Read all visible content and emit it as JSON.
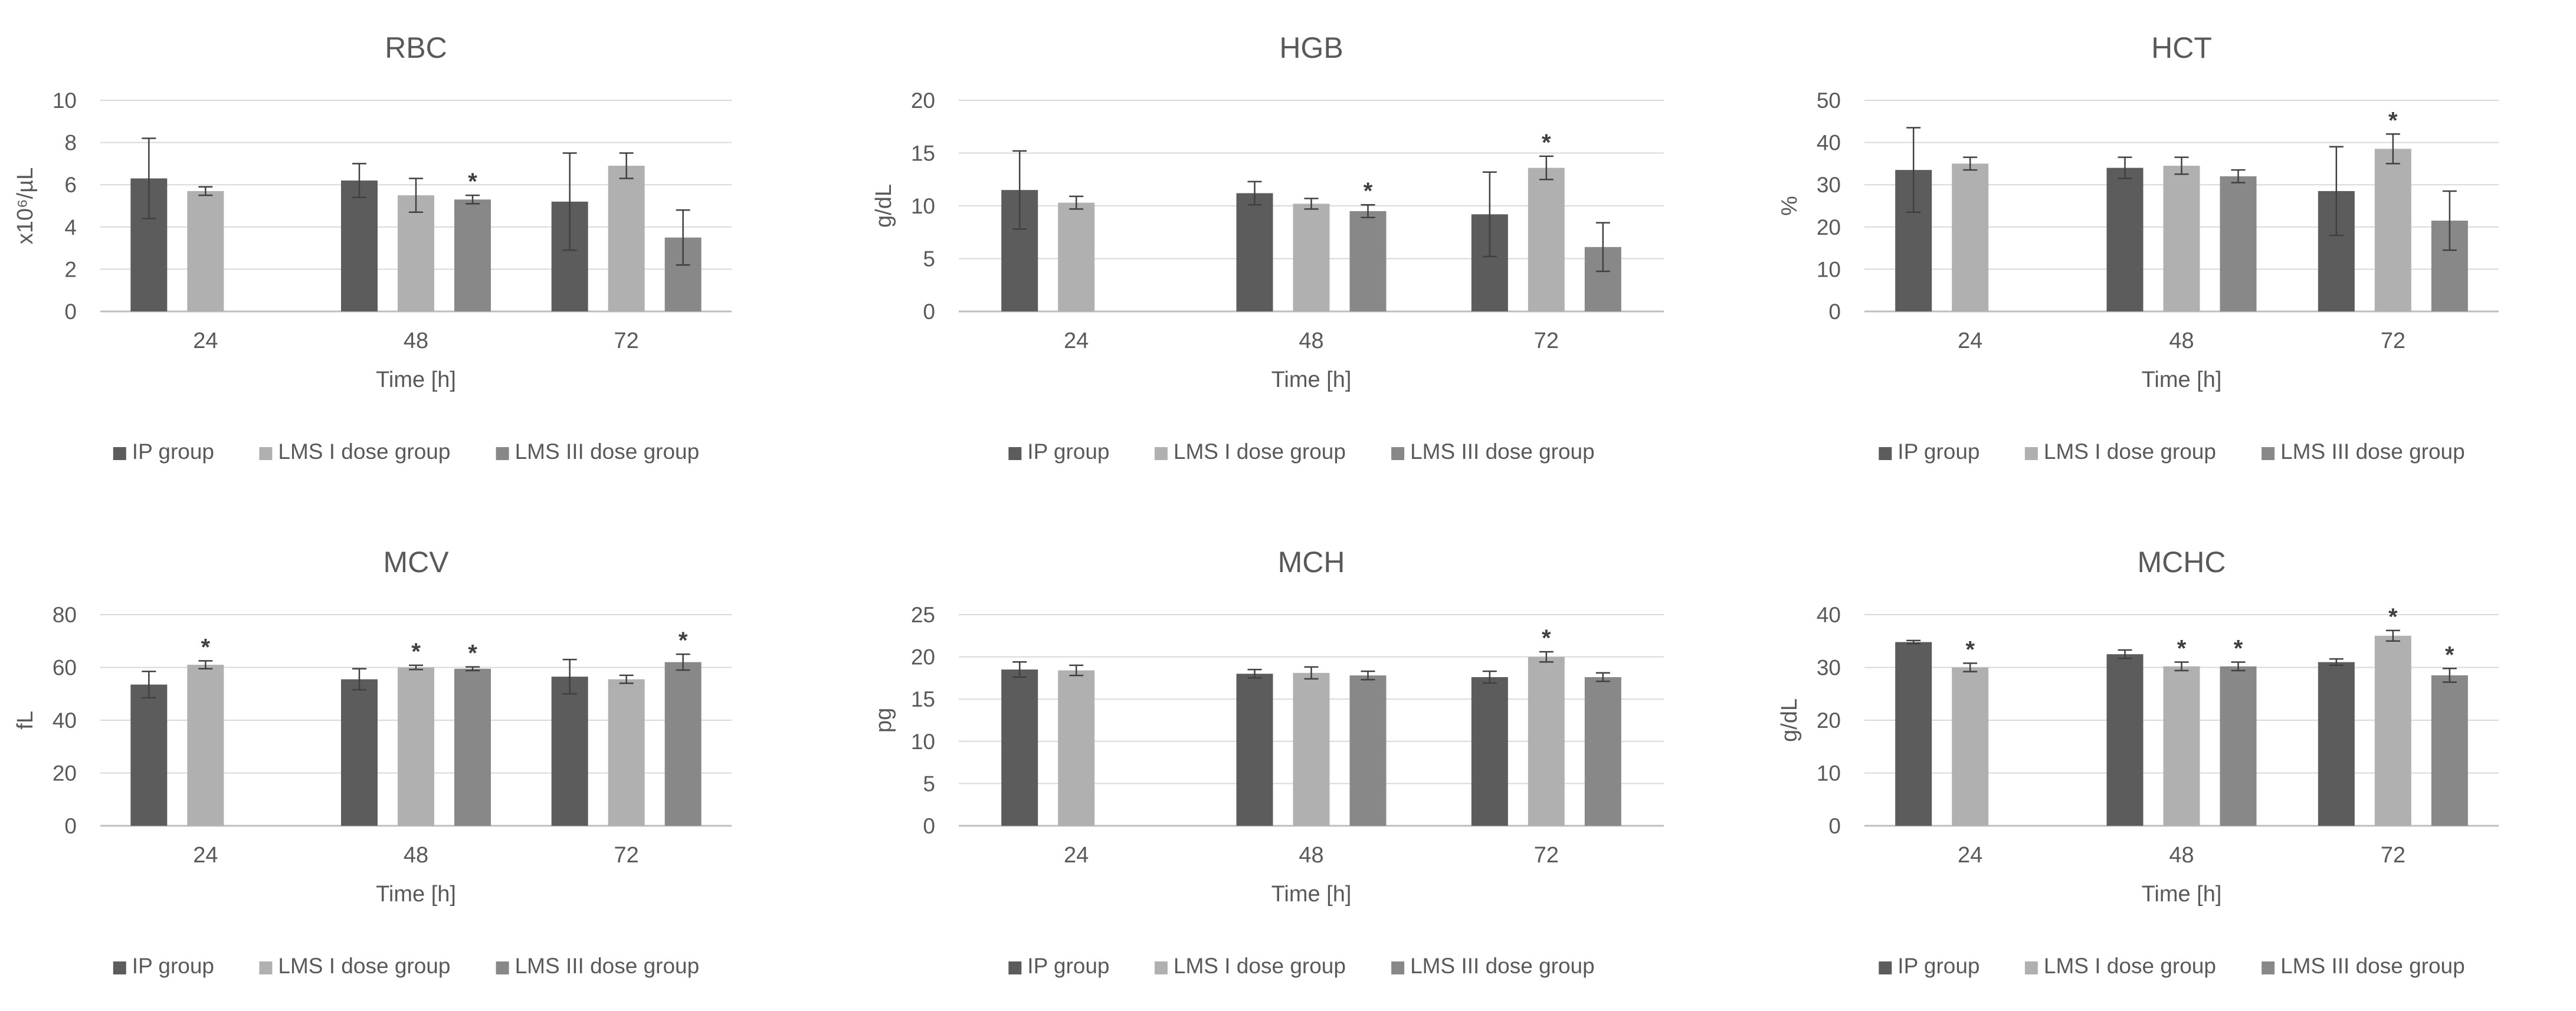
{
  "colors": {
    "ip": "#5c5c5c",
    "lms1": "#b0b0b0",
    "lms3": "#888888",
    "grid": "#d9d9d9",
    "axis": "#bfbfbf",
    "text": "#595959"
  },
  "chart_data": [
    {
      "type": "bar",
      "title": "RBC",
      "xlabel": "Time [h]",
      "ylabel": "x10⁶/µL",
      "ylim": [
        0,
        10
      ],
      "yticks": [
        0,
        2,
        4,
        6,
        8,
        10
      ],
      "grid": true,
      "legend": "bottom",
      "categories": [
        "24",
        "48",
        "72"
      ],
      "series": [
        {
          "name": "IP group",
          "values": [
            6.3,
            6.2,
            5.2
          ],
          "errors": [
            1.9,
            0.8,
            2.3
          ],
          "sig": [
            false,
            false,
            false
          ]
        },
        {
          "name": "LMS I dose group",
          "values": [
            5.7,
            5.5,
            6.9
          ],
          "errors": [
            0.2,
            0.8,
            0.6
          ],
          "sig": [
            false,
            false,
            false
          ]
        },
        {
          "name": "LMS III dose group",
          "values": [
            null,
            5.3,
            3.5
          ],
          "errors": [
            null,
            0.2,
            1.3
          ],
          "sig": [
            false,
            true,
            false
          ]
        }
      ]
    },
    {
      "type": "bar",
      "title": "HGB",
      "xlabel": "Time [h]",
      "ylabel": "g/dL",
      "ylim": [
        0,
        20
      ],
      "yticks": [
        0,
        5,
        10,
        15,
        20
      ],
      "grid": true,
      "legend": "bottom",
      "categories": [
        "24",
        "48",
        "72"
      ],
      "series": [
        {
          "name": "IP group",
          "values": [
            11.5,
            11.2,
            9.2
          ],
          "errors": [
            3.7,
            1.1,
            4.0
          ],
          "sig": [
            false,
            false,
            false
          ]
        },
        {
          "name": "LMS I dose group",
          "values": [
            10.3,
            10.2,
            13.6
          ],
          "errors": [
            0.6,
            0.5,
            1.1
          ],
          "sig": [
            false,
            false,
            true
          ]
        },
        {
          "name": "LMS III dose group",
          "values": [
            null,
            9.5,
            6.1
          ],
          "errors": [
            null,
            0.6,
            2.3
          ],
          "sig": [
            false,
            true,
            false
          ]
        }
      ]
    },
    {
      "type": "bar",
      "title": "HCT",
      "xlabel": "Time [h]",
      "ylabel": "%",
      "ylim": [
        0,
        50
      ],
      "yticks": [
        0,
        10,
        20,
        30,
        40,
        50
      ],
      "grid": true,
      "legend": "bottom",
      "categories": [
        "24",
        "48",
        "72"
      ],
      "series": [
        {
          "name": "IP group",
          "values": [
            33.5,
            34.0,
            28.5
          ],
          "errors": [
            10.0,
            2.5,
            10.5
          ],
          "sig": [
            false,
            false,
            false
          ]
        },
        {
          "name": "LMS I dose group",
          "values": [
            35.0,
            34.5,
            38.5
          ],
          "errors": [
            1.5,
            2.0,
            3.5
          ],
          "sig": [
            false,
            false,
            true
          ]
        },
        {
          "name": "LMS III dose group",
          "values": [
            null,
            32.0,
            21.5
          ],
          "errors": [
            null,
            1.5,
            7.0
          ],
          "sig": [
            false,
            false,
            false
          ]
        }
      ]
    },
    {
      "type": "bar",
      "title": "MCV",
      "xlabel": "Time [h]",
      "ylabel": "fL",
      "ylim": [
        0,
        80
      ],
      "yticks": [
        0,
        20,
        40,
        60,
        80
      ],
      "grid": true,
      "legend": "bottom",
      "categories": [
        "24",
        "48",
        "72"
      ],
      "series": [
        {
          "name": "IP group",
          "values": [
            53.5,
            55.5,
            56.5
          ],
          "errors": [
            5.0,
            4.0,
            6.5
          ],
          "sig": [
            false,
            false,
            false
          ]
        },
        {
          "name": "LMS I dose group",
          "values": [
            61.0,
            60.0,
            55.5
          ],
          "errors": [
            1.5,
            0.8,
            1.5
          ],
          "sig": [
            true,
            true,
            false
          ]
        },
        {
          "name": "LMS III dose group",
          "values": [
            null,
            59.5,
            62.0
          ],
          "errors": [
            null,
            0.7,
            3.0
          ],
          "sig": [
            false,
            true,
            true
          ]
        }
      ]
    },
    {
      "type": "bar",
      "title": "MCH",
      "xlabel": "Time [h]",
      "ylabel": "pg",
      "ylim": [
        0,
        25
      ],
      "yticks": [
        0,
        5,
        10,
        15,
        20,
        25
      ],
      "grid": true,
      "legend": "bottom",
      "categories": [
        "24",
        "48",
        "72"
      ],
      "series": [
        {
          "name": "IP group",
          "values": [
            18.5,
            18.0,
            17.6
          ],
          "errors": [
            0.9,
            0.5,
            0.7
          ],
          "sig": [
            false,
            false,
            false
          ]
        },
        {
          "name": "LMS I dose group",
          "values": [
            18.4,
            18.1,
            20.0
          ],
          "errors": [
            0.6,
            0.7,
            0.6
          ],
          "sig": [
            false,
            false,
            true
          ]
        },
        {
          "name": "LMS III dose group",
          "values": [
            null,
            17.8,
            17.6
          ],
          "errors": [
            null,
            0.5,
            0.5
          ],
          "sig": [
            false,
            false,
            false
          ]
        }
      ]
    },
    {
      "type": "bar",
      "title": "MCHC",
      "xlabel": "Time [h]",
      "ylabel": "g/dL",
      "ylim": [
        0,
        40
      ],
      "yticks": [
        0,
        10,
        20,
        30,
        40
      ],
      "grid": true,
      "legend": "bottom",
      "categories": [
        "24",
        "48",
        "72"
      ],
      "series": [
        {
          "name": "IP group",
          "values": [
            34.8,
            32.5,
            31.0
          ],
          "errors": [
            0.3,
            0.8,
            0.6
          ],
          "sig": [
            false,
            false,
            false
          ]
        },
        {
          "name": "LMS I dose group",
          "values": [
            30.0,
            30.2,
            36.0
          ],
          "errors": [
            0.8,
            0.8,
            1.0
          ],
          "sig": [
            true,
            true,
            true
          ]
        },
        {
          "name": "LMS III dose group",
          "values": [
            null,
            30.2,
            28.5
          ],
          "errors": [
            null,
            0.8,
            1.3
          ],
          "sig": [
            false,
            true,
            true
          ]
        }
      ]
    }
  ]
}
